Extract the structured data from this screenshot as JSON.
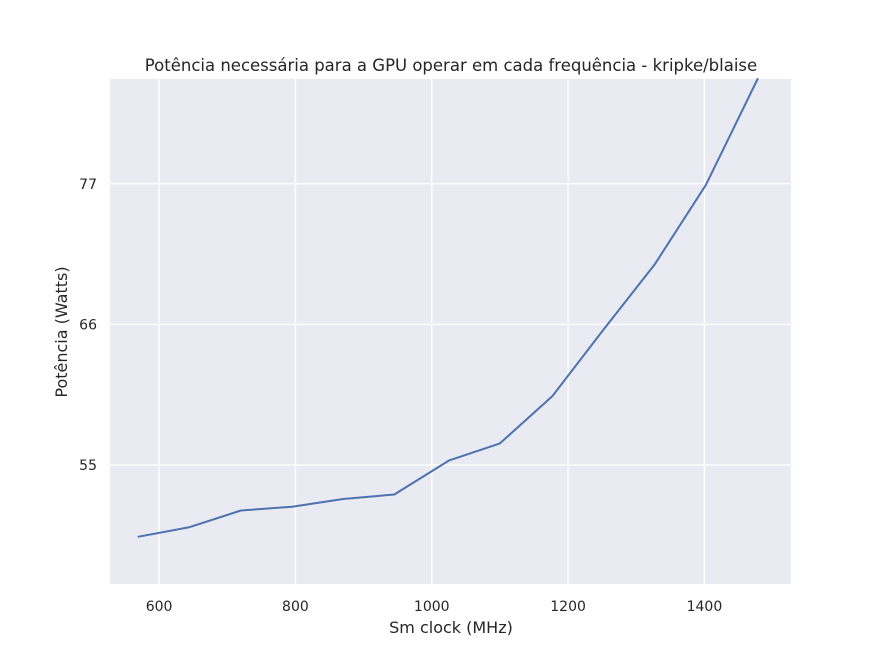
{
  "chart_data": {
    "type": "line",
    "title": "Potência necessária para a GPU operar em cada frequência - kripke/blaise",
    "xlabel": "Sm clock (MHz)",
    "ylabel": "Potência (Watts)",
    "xlim": [
      528,
      1527
    ],
    "ylim": [
      45.7,
      85.2
    ],
    "xticks": [
      600,
      800,
      1000,
      1200,
      1400
    ],
    "yticks": [
      55,
      66,
      77
    ],
    "grid": true,
    "legend": "none",
    "colors": {
      "line": "#4c72b0",
      "plot_bg": "#eaeaf2",
      "grid": "#ffffff",
      "text": "#262626"
    },
    "series": [
      {
        "name": "kripke/blaise",
        "x": [
          570,
          645,
          720,
          795,
          870,
          945,
          1025,
          1100,
          1177,
          1252,
          1327,
          1402,
          1478
        ],
        "y": [
          49.4,
          50.15,
          51.45,
          51.75,
          52.35,
          52.7,
          55.35,
          56.7,
          60.4,
          65.6,
          70.7,
          76.9,
          85.2
        ]
      }
    ]
  }
}
